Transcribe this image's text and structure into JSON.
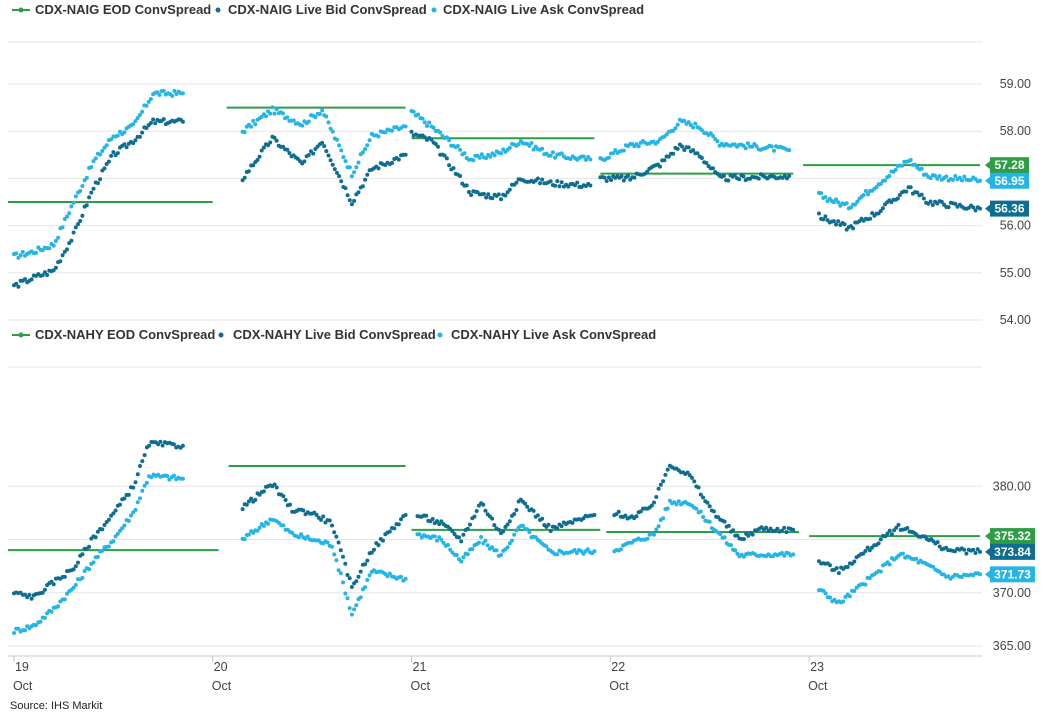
{
  "source": "Source: IHS  Markit",
  "colors": {
    "eod": "#2e9e44",
    "bid": "#0e6e92",
    "ask": "#25b4e6",
    "grid": "#e6e6e6",
    "axis": "#c8c8c8"
  },
  "x_axis": {
    "ticks": [
      {
        "day": "19",
        "month": "Oct"
      },
      {
        "day": "20",
        "month": "Oct"
      },
      {
        "day": "21",
        "month": "Oct"
      },
      {
        "day": "22",
        "month": "Oct"
      },
      {
        "day": "23",
        "month": "Oct"
      }
    ]
  },
  "chart_data": [
    {
      "type": "line",
      "legend": [
        "CDX-NAIG EOD ConvSpread",
        "CDX-NAIG Live Bid ConvSpread",
        "CDX-NAIG Live Ask ConvSpread"
      ],
      "x_range": [
        "19 Oct",
        "23 Oct"
      ],
      "ylim": [
        54,
        59
      ],
      "y_ticks": [
        {
          "v": 59,
          "label": "59.00"
        },
        {
          "v": 58,
          "label": "58.00"
        },
        {
          "v": 57,
          "label": ""
        },
        {
          "v": 56,
          "label": "56.00"
        },
        {
          "v": 55,
          "label": "55.00"
        },
        {
          "v": 54,
          "label": "54.00"
        }
      ],
      "grid": true,
      "last_values": [
        {
          "series": "eod",
          "label": "57.28",
          "value": 57.28
        },
        {
          "series": "ask",
          "label": "56.95",
          "value": 56.95
        },
        {
          "series": "bid",
          "label": "56.36",
          "value": 56.36
        }
      ],
      "eod_segments": [
        {
          "x": [
            18.97,
            20.0
          ],
          "y": 56.5
        },
        {
          "x": [
            20.07,
            20.97
          ],
          "y": 58.5
        },
        {
          "x": [
            21.0,
            21.92
          ],
          "y": 57.85
        },
        {
          "x": [
            21.95,
            22.92
          ],
          "y": 57.1
        },
        {
          "x": [
            22.97,
            23.86
          ],
          "y": 57.28
        }
      ],
      "bid": [
        [
          [
            19.0,
            54.72
          ],
          [
            19.1,
            54.9
          ],
          [
            19.2,
            55.05
          ],
          [
            19.3,
            55.8
          ],
          [
            19.4,
            56.8
          ],
          [
            19.5,
            57.5
          ],
          [
            19.6,
            57.8
          ],
          [
            19.7,
            58.2
          ],
          [
            19.85,
            58.2
          ]
        ],
        [
          [
            20.15,
            57.0
          ],
          [
            20.3,
            57.85
          ],
          [
            20.45,
            57.3
          ],
          [
            20.55,
            57.8
          ],
          [
            20.7,
            56.5
          ],
          [
            20.8,
            57.2
          ],
          [
            20.97,
            57.5
          ]
        ],
        [
          [
            21.0,
            57.95
          ],
          [
            21.1,
            57.8
          ],
          [
            21.3,
            56.7
          ],
          [
            21.45,
            56.6
          ],
          [
            21.55,
            57.0
          ],
          [
            21.7,
            56.9
          ],
          [
            21.9,
            56.85
          ]
        ],
        [
          [
            21.95,
            57.0
          ],
          [
            22.1,
            57.0
          ],
          [
            22.25,
            57.3
          ],
          [
            22.35,
            57.7
          ],
          [
            22.45,
            57.5
          ],
          [
            22.55,
            57.0
          ],
          [
            22.9,
            57.05
          ]
        ],
        [
          [
            23.05,
            56.2
          ],
          [
            23.2,
            55.95
          ],
          [
            23.35,
            56.3
          ],
          [
            23.5,
            56.8
          ],
          [
            23.6,
            56.5
          ],
          [
            23.86,
            56.36
          ]
        ]
      ],
      "ask": [
        [
          [
            19.0,
            55.35
          ],
          [
            19.1,
            55.45
          ],
          [
            19.2,
            55.6
          ],
          [
            19.3,
            56.5
          ],
          [
            19.4,
            57.35
          ],
          [
            19.5,
            57.9
          ],
          [
            19.6,
            58.1
          ],
          [
            19.7,
            58.8
          ],
          [
            19.85,
            58.8
          ]
        ],
        [
          [
            20.15,
            58.0
          ],
          [
            20.3,
            58.45
          ],
          [
            20.45,
            58.15
          ],
          [
            20.55,
            58.45
          ],
          [
            20.7,
            57.1
          ],
          [
            20.8,
            57.9
          ],
          [
            20.97,
            58.1
          ]
        ],
        [
          [
            21.0,
            58.4
          ],
          [
            21.1,
            58.1
          ],
          [
            21.3,
            57.4
          ],
          [
            21.45,
            57.55
          ],
          [
            21.55,
            57.8
          ],
          [
            21.7,
            57.5
          ],
          [
            21.9,
            57.4
          ]
        ],
        [
          [
            21.95,
            57.4
          ],
          [
            22.1,
            57.7
          ],
          [
            22.25,
            57.8
          ],
          [
            22.35,
            58.2
          ],
          [
            22.45,
            58.1
          ],
          [
            22.55,
            57.75
          ],
          [
            22.9,
            57.6
          ]
        ],
        [
          [
            23.05,
            56.65
          ],
          [
            23.2,
            56.4
          ],
          [
            23.35,
            56.9
          ],
          [
            23.5,
            57.4
          ],
          [
            23.6,
            57.05
          ],
          [
            23.86,
            56.95
          ]
        ]
      ]
    },
    {
      "type": "line",
      "legend": [
        "CDX-NAHY EOD ConvSpread",
        "CDX-NAHY Live Bid ConvSpread",
        "CDX-NAHY Live Ask ConvSpread"
      ],
      "x_range": [
        "19 Oct",
        "23 Oct"
      ],
      "ylim": [
        365,
        385
      ],
      "y_ticks": [
        {
          "v": 380,
          "label": "380.00"
        },
        {
          "v": 375,
          "label": ""
        },
        {
          "v": 370,
          "label": "370.00"
        },
        {
          "v": 365,
          "label": "365.00"
        }
      ],
      "grid": true,
      "last_values": [
        {
          "series": "eod",
          "label": "375.32",
          "value": 375.32
        },
        {
          "series": "bid",
          "label": "373.84",
          "value": 373.84
        },
        {
          "series": "ask",
          "label": "371.73",
          "value": 371.73
        }
      ],
      "eod_segments": [
        {
          "x": [
            18.97,
            20.03
          ],
          "y": 374.0
        },
        {
          "x": [
            20.08,
            20.97
          ],
          "y": 381.9
        },
        {
          "x": [
            21.0,
            21.95
          ],
          "y": 375.9
        },
        {
          "x": [
            21.98,
            22.95
          ],
          "y": 375.7
        },
        {
          "x": [
            23.0,
            23.86
          ],
          "y": 375.32
        }
      ],
      "bid": [
        [
          [
            19.0,
            370.0
          ],
          [
            19.1,
            369.6
          ],
          [
            19.2,
            371.0
          ],
          [
            19.3,
            372.3
          ],
          [
            19.4,
            375.2
          ],
          [
            19.5,
            377.4
          ],
          [
            19.6,
            380.0
          ],
          [
            19.68,
            384.0
          ],
          [
            19.85,
            383.8
          ]
        ],
        [
          [
            20.15,
            378.0
          ],
          [
            20.3,
            380.2
          ],
          [
            20.4,
            377.8
          ],
          [
            20.5,
            377.5
          ],
          [
            20.6,
            376.5
          ],
          [
            20.7,
            370.5
          ],
          [
            20.8,
            374.0
          ],
          [
            20.97,
            377.3
          ]
        ],
        [
          [
            21.03,
            377.3
          ],
          [
            21.15,
            376.5
          ],
          [
            21.25,
            375.0
          ],
          [
            21.35,
            378.5
          ],
          [
            21.45,
            375.5
          ],
          [
            21.55,
            378.7
          ],
          [
            21.7,
            376.0
          ],
          [
            21.92,
            377.3
          ]
        ],
        [
          [
            22.02,
            377.5
          ],
          [
            22.12,
            377.0
          ],
          [
            22.22,
            378.5
          ],
          [
            22.3,
            382.1
          ],
          [
            22.4,
            381.0
          ],
          [
            22.5,
            378.0
          ],
          [
            22.65,
            375.0
          ],
          [
            22.75,
            376.0
          ],
          [
            22.92,
            375.9
          ]
        ],
        [
          [
            23.05,
            373.0
          ],
          [
            23.15,
            372.0
          ],
          [
            23.25,
            373.4
          ],
          [
            23.35,
            374.8
          ],
          [
            23.45,
            376.2
          ],
          [
            23.55,
            375.5
          ],
          [
            23.7,
            374.0
          ],
          [
            23.86,
            373.84
          ]
        ]
      ],
      "ask": [
        [
          [
            19.0,
            366.4
          ],
          [
            19.1,
            366.9
          ],
          [
            19.2,
            368.5
          ],
          [
            19.3,
            370.5
          ],
          [
            19.4,
            373.0
          ],
          [
            19.5,
            375.0
          ],
          [
            19.6,
            377.5
          ],
          [
            19.68,
            381.0
          ],
          [
            19.85,
            380.7
          ]
        ],
        [
          [
            20.15,
            375.0
          ],
          [
            20.3,
            377.0
          ],
          [
            20.4,
            375.5
          ],
          [
            20.5,
            375.0
          ],
          [
            20.6,
            374.5
          ],
          [
            20.7,
            368.0
          ],
          [
            20.8,
            372.0
          ],
          [
            20.97,
            371.3
          ]
        ],
        [
          [
            21.03,
            375.5
          ],
          [
            21.15,
            375.0
          ],
          [
            21.25,
            373.0
          ],
          [
            21.35,
            375.0
          ],
          [
            21.45,
            373.5
          ],
          [
            21.55,
            376.3
          ],
          [
            21.7,
            373.8
          ],
          [
            21.92,
            373.9
          ]
        ],
        [
          [
            22.02,
            374.0
          ],
          [
            22.12,
            374.8
          ],
          [
            22.22,
            375.5
          ],
          [
            22.3,
            378.5
          ],
          [
            22.4,
            378.5
          ],
          [
            22.5,
            376.5
          ],
          [
            22.65,
            373.5
          ],
          [
            22.75,
            373.6
          ],
          [
            22.92,
            373.6
          ]
        ],
        [
          [
            23.05,
            370.3
          ],
          [
            23.15,
            369.0
          ],
          [
            23.25,
            370.5
          ],
          [
            23.35,
            372.0
          ],
          [
            23.45,
            373.6
          ],
          [
            23.55,
            373.0
          ],
          [
            23.7,
            371.5
          ],
          [
            23.86,
            371.73
          ]
        ]
      ]
    }
  ]
}
